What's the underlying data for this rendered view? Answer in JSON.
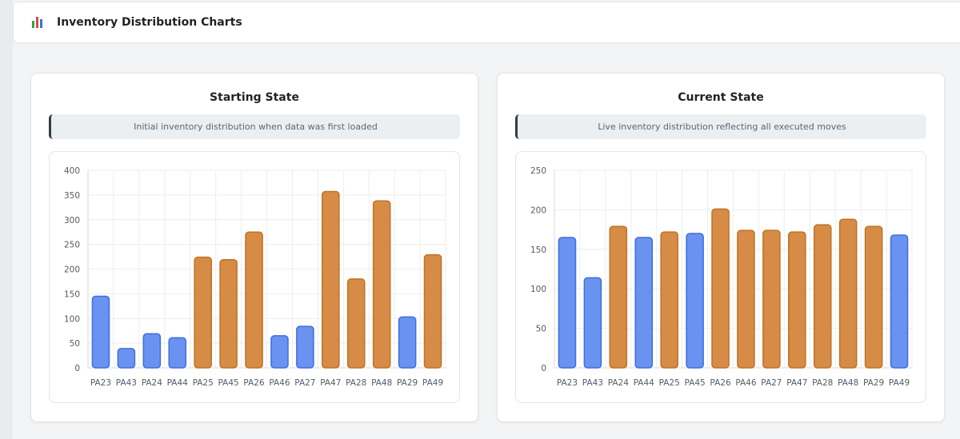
{
  "header": {
    "title": "Inventory Distribution Charts",
    "icon": "bar-chart-icon"
  },
  "colors": {
    "blue_fill": "#6a92f0",
    "blue_stroke": "#3f6ee0",
    "orange_fill": "#d68c46",
    "orange_stroke": "#c07223",
    "grid": "#eeeeee"
  },
  "panels": [
    {
      "title": "Starting State",
      "subtitle": "Initial inventory distribution when data was first loaded"
    },
    {
      "title": "Current State",
      "subtitle": "Live inventory distribution reflecting all executed moves"
    }
  ],
  "chart_data": [
    {
      "type": "bar",
      "title": "Starting State",
      "categories": [
        "PA23",
        "PA43",
        "PA24",
        "PA44",
        "PA25",
        "PA45",
        "PA26",
        "PA46",
        "PA27",
        "PA47",
        "PA28",
        "PA48",
        "PA29",
        "PA49"
      ],
      "values": [
        145,
        39,
        69,
        61,
        224,
        219,
        275,
        65,
        84,
        357,
        180,
        338,
        103,
        229
      ],
      "colors": [
        "blue",
        "blue",
        "blue",
        "blue",
        "orange",
        "orange",
        "orange",
        "blue",
        "blue",
        "orange",
        "orange",
        "orange",
        "blue",
        "orange"
      ],
      "ylim": [
        0,
        400
      ],
      "yticks": [
        0,
        50,
        100,
        150,
        200,
        250,
        300,
        350,
        400
      ],
      "grid": true
    },
    {
      "type": "bar",
      "title": "Current State",
      "categories": [
        "PA23",
        "PA43",
        "PA24",
        "PA44",
        "PA25",
        "PA45",
        "PA26",
        "PA46",
        "PA27",
        "PA47",
        "PA28",
        "PA48",
        "PA29",
        "PA49"
      ],
      "values": [
        165,
        114,
        179,
        165,
        172,
        170,
        201,
        174,
        174,
        172,
        181,
        188,
        179,
        168
      ],
      "colors": [
        "blue",
        "blue",
        "orange",
        "blue",
        "orange",
        "blue",
        "orange",
        "orange",
        "orange",
        "orange",
        "orange",
        "orange",
        "orange",
        "blue"
      ],
      "ylim": [
        0,
        250
      ],
      "yticks": [
        0,
        50,
        100,
        150,
        200,
        250
      ],
      "grid": true
    }
  ]
}
